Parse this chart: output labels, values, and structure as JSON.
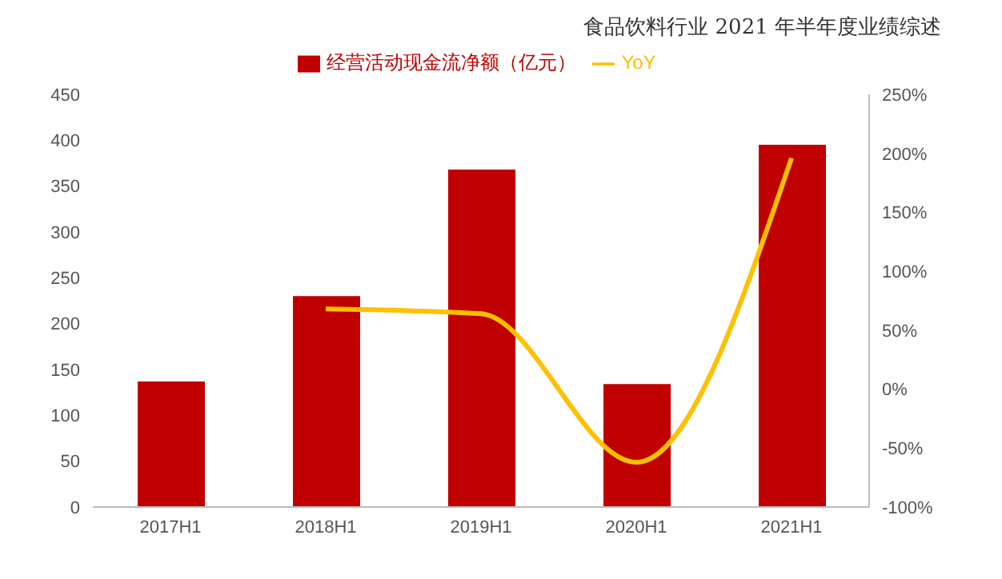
{
  "chart_data": {
    "type": "bar",
    "title": "食品饮料行业 2021 年半年度业绩综述",
    "categories": [
      "2017H1",
      "2018H1",
      "2019H1",
      "2020H1",
      "2021H1"
    ],
    "series": [
      {
        "name": "经营活动现金流净额（亿元）",
        "color": "#c00000",
        "values": [
          137,
          230,
          368,
          134,
          395
        ]
      },
      {
        "name": "YoY",
        "type": "line",
        "color": "#ffc000",
        "axis": "y2",
        "values": [
          null,
          68,
          64,
          -62,
          196
        ]
      }
    ],
    "ylim": [
      0,
      450
    ],
    "yticks": [
      0,
      50,
      100,
      150,
      200,
      250,
      300,
      350,
      400,
      450
    ],
    "y2lim": [
      -100,
      250
    ],
    "y2ticks": [
      {
        "value": -100,
        "label": "-100%"
      },
      {
        "value": -50,
        "label": "-50%"
      },
      {
        "value": 0,
        "label": "0%"
      },
      {
        "value": 50,
        "label": "50%"
      },
      {
        "value": 100,
        "label": "100%"
      },
      {
        "value": 150,
        "label": "150%"
      },
      {
        "value": 200,
        "label": "200%"
      },
      {
        "value": 250,
        "label": "250%"
      }
    ],
    "grid": false,
    "legend": "top",
    "marker": "none"
  }
}
